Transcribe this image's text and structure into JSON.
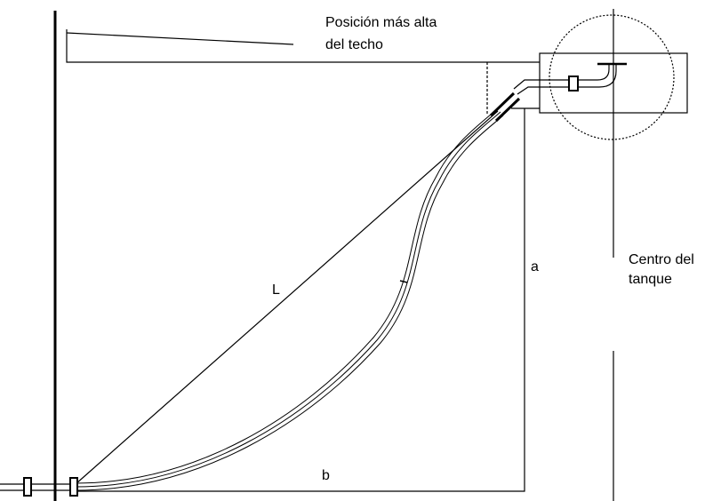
{
  "labels": {
    "roof": [
      "Posición más alta",
      "del techo"
    ],
    "length": "L",
    "height": "a",
    "base": "b",
    "tank_center": [
      "Centro del",
      "tanque"
    ]
  }
}
